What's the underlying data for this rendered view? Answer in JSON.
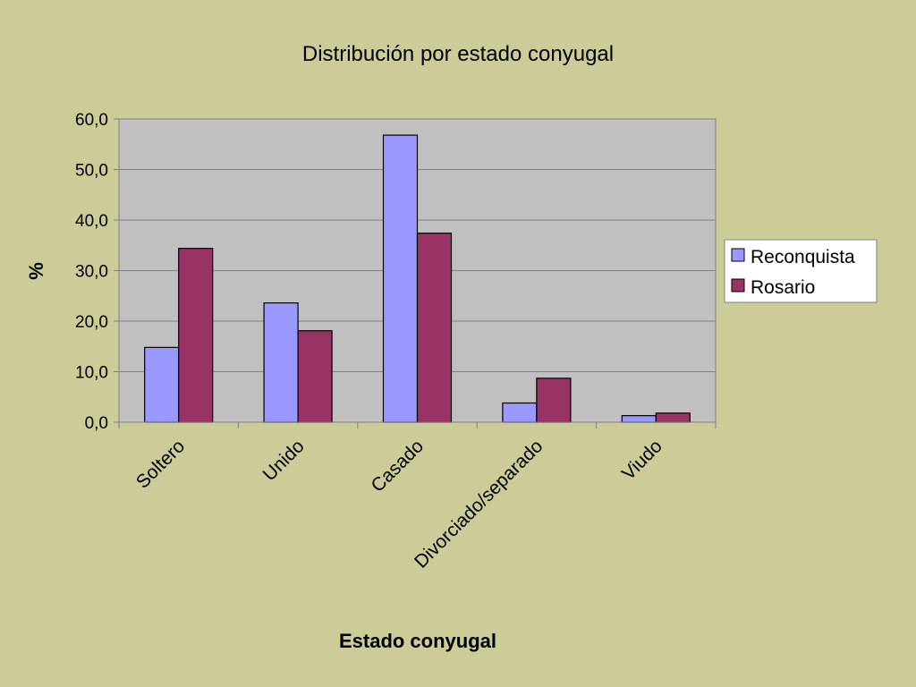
{
  "chart_data": {
    "type": "bar",
    "title": "Distribución por estado conyugal",
    "xlabel": "Estado conyugal",
    "ylabel": "%",
    "ylim": [
      0,
      60
    ],
    "yticks": [
      "0,0",
      "10,0",
      "20,0",
      "30,0",
      "40,0",
      "50,0",
      "60,0"
    ],
    "categories": [
      "Soltero",
      "Unido",
      "Casado",
      "Divorciado/separado",
      "Viudo"
    ],
    "series": [
      {
        "name": "Reconquista",
        "color": "#9999ff",
        "values": [
          14.8,
          23.6,
          56.8,
          3.8,
          1.3
        ]
      },
      {
        "name": "Rosario",
        "color": "#993366",
        "values": [
          34.4,
          18.1,
          37.4,
          8.7,
          1.8
        ]
      }
    ],
    "grid": true,
    "legend": "right",
    "plot_background": "#c0c0c0",
    "page_background": "#cccc99"
  }
}
